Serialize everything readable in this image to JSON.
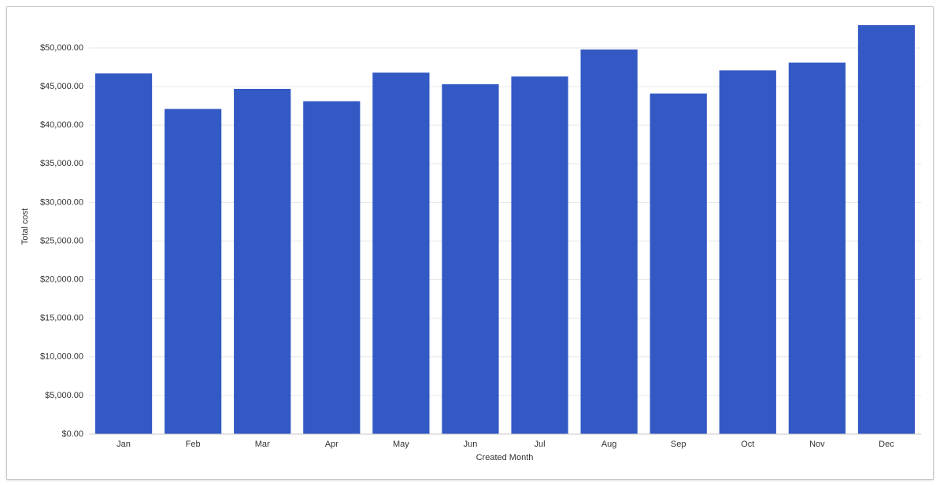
{
  "chart_data": {
    "type": "bar",
    "x_label": "Created Month",
    "y_label": "Total cost",
    "categories": [
      "Jan",
      "Feb",
      "Mar",
      "Apr",
      "May",
      "Jun",
      "Jul",
      "Aug",
      "Sep",
      "Oct",
      "Nov",
      "Dec"
    ],
    "values": [
      46700,
      42100,
      44700,
      43100,
      46800,
      45300,
      46300,
      49800,
      44100,
      47100,
      48100,
      52950
    ],
    "color": "#3359c4",
    "ylim": [
      0,
      53000
    ],
    "yticks": [
      {
        "value": 0,
        "label": "$0.00"
      },
      {
        "value": 5000,
        "label": "$5,000.00"
      },
      {
        "value": 10000,
        "label": "$10,000.00"
      },
      {
        "value": 15000,
        "label": "$15,000.00"
      },
      {
        "value": 20000,
        "label": "$20,000.00"
      },
      {
        "value": 25000,
        "label": "$25,000.00"
      },
      {
        "value": 30000,
        "label": "$30,000.00"
      },
      {
        "value": 35000,
        "label": "$35,000.00"
      },
      {
        "value": 40000,
        "label": "$40,000.00"
      },
      {
        "value": 45000,
        "label": "$45,000.00"
      },
      {
        "value": 50000,
        "label": "$50,000.00"
      }
    ],
    "grid": true
  }
}
